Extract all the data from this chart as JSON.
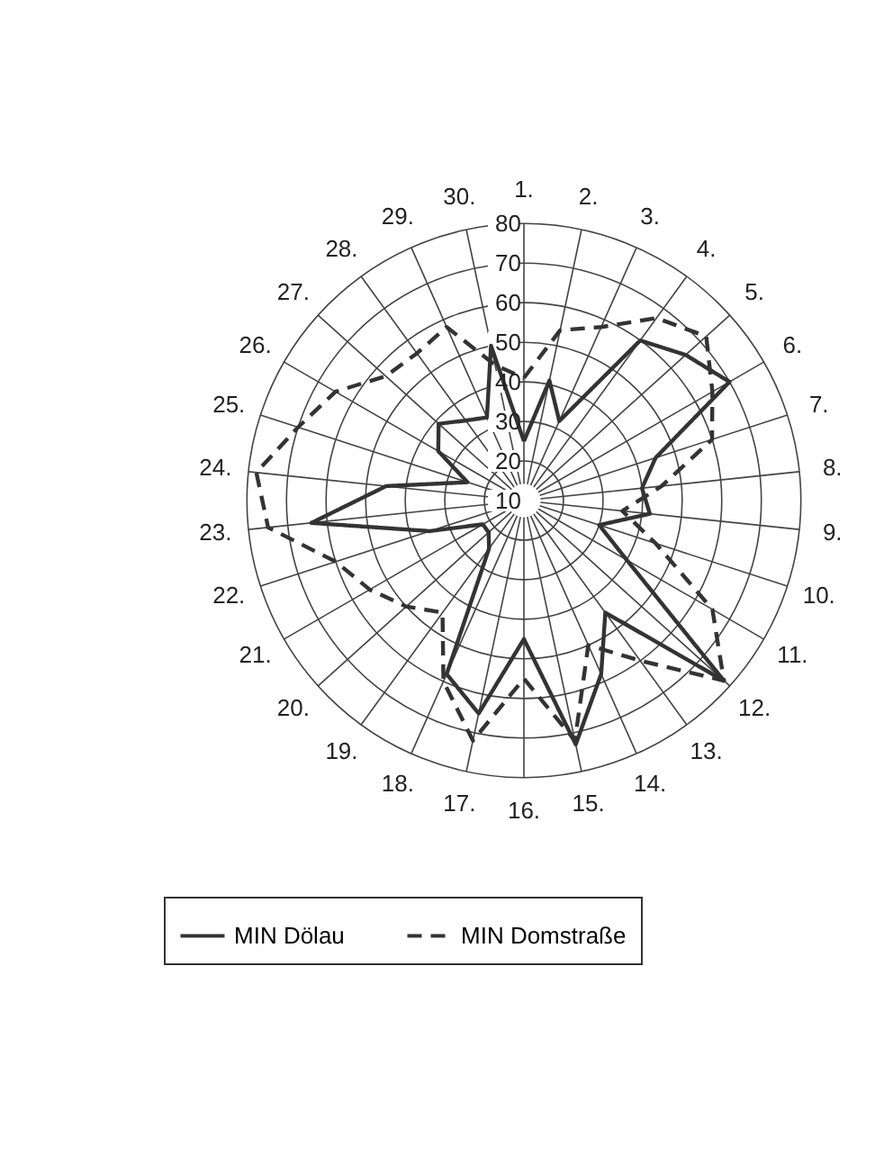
{
  "chart_data": {
    "type": "radar",
    "categories": [
      "1.",
      "2.",
      "3.",
      "4.",
      "5.",
      "6.",
      "7.",
      "8.",
      "9.",
      "10.",
      "11.",
      "12.",
      "13.",
      "14.",
      "15.",
      "16.",
      "17.",
      "18.",
      "19.",
      "20.",
      "21.",
      "22.",
      "23.",
      "24.",
      "25.",
      "26.",
      "27.",
      "28.",
      "29.",
      "30."
    ],
    "series": [
      {
        "name": "MIN Dölau",
        "color": "#333333",
        "line_style": "solid",
        "values": [
          25,
          41,
          32,
          60,
          65,
          70,
          45,
          40,
          42,
          30,
          40,
          78,
          45,
          58,
          73,
          45,
          65,
          58,
          25,
          22,
          22,
          35,
          64,
          45,
          25,
          35,
          39,
          35,
          33,
          50
        ]
      },
      {
        "name": "MIN Domstraße",
        "color": "#333333",
        "line_style": "dashed",
        "values": [
          41,
          54,
          58,
          67,
          72,
          65,
          60,
          45,
          35,
          45,
          65,
          78,
          60,
          50,
          72,
          55,
          72,
          60,
          45,
          50,
          55,
          60,
          75,
          78,
          70,
          65,
          57,
          56,
          58,
          45
        ]
      }
    ],
    "ylim": [
      10,
      80
    ],
    "yticks": [
      10,
      20,
      30,
      40,
      50,
      60,
      70,
      80
    ],
    "grid": true,
    "legend": "bottom"
  }
}
